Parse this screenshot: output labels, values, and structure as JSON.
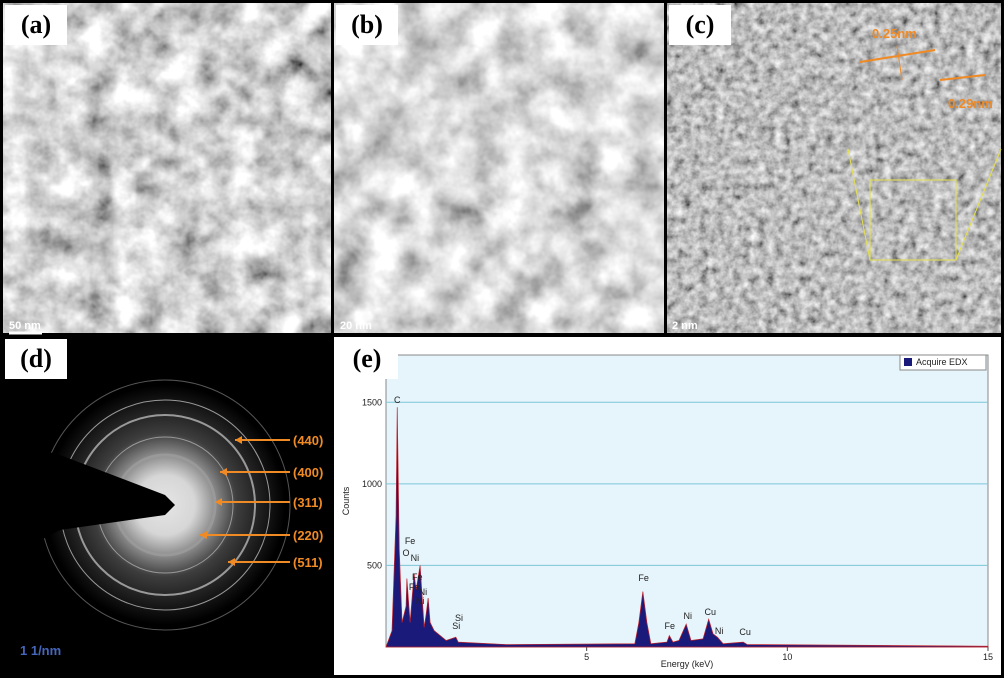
{
  "panels": [
    {
      "label": "(a)",
      "scale_bar": "50 nm"
    },
    {
      "label": "(b)",
      "scale_bar": "20 nm"
    },
    {
      "label": "(c)",
      "scale_bar": "2 nm"
    },
    {
      "label": "(d)",
      "scale_bar": "1 1/nm"
    },
    {
      "label": "(e)"
    }
  ],
  "inset": {
    "spacing_1": "0.25nm",
    "spacing_2": "0.29nm"
  },
  "diffraction": {
    "rings": [
      "(440)",
      "(400)",
      "(311)",
      "(220)",
      "(511)"
    ]
  },
  "chart_data": {
    "type": "area",
    "xlabel": "Energy (keV)",
    "ylabel": "Counts",
    "xlim": [
      0,
      15
    ],
    "xticks": [
      5,
      10,
      15
    ],
    "ylim": [
      0,
      1790
    ],
    "yticks": [
      500,
      1000,
      1500
    ],
    "grid": true,
    "legend": "upper right",
    "series": [
      {
        "name": "Acquire EDX",
        "color": "#1a1a7a",
        "x": [
          0,
          0.15,
          0.25,
          0.28,
          0.33,
          0.4,
          0.5,
          0.52,
          0.6,
          0.7,
          0.75,
          0.85,
          0.95,
          1.0,
          1.05,
          1.1,
          1.2,
          1.5,
          1.74,
          1.8,
          3,
          6.2,
          6.3,
          6.4,
          6.5,
          6.6,
          7.0,
          7.06,
          7.15,
          7.3,
          7.48,
          7.6,
          7.9,
          8.04,
          8.15,
          8.26,
          8.4,
          8.9,
          9.0,
          15
        ],
        "values": [
          0,
          100,
          800,
          1470,
          600,
          150,
          250,
          420,
          150,
          450,
          350,
          500,
          120,
          200,
          300,
          150,
          100,
          40,
          60,
          30,
          15,
          20,
          150,
          340,
          150,
          20,
          30,
          70,
          30,
          40,
          140,
          40,
          50,
          170,
          80,
          60,
          20,
          30,
          15,
          5
        ]
      }
    ],
    "annotations": [
      {
        "text": "C",
        "x": 0.28,
        "y": 1497
      },
      {
        "text": "Fe",
        "x": 0.6,
        "y": 632
      },
      {
        "text": "O",
        "x": 0.5,
        "y": 558
      },
      {
        "text": "Ni",
        "x": 0.72,
        "y": 528
      },
      {
        "text": "Fe",
        "x": 0.78,
        "y": 411
      },
      {
        "text": "Fe",
        "x": 0.7,
        "y": 350
      },
      {
        "text": "Ni",
        "x": 0.92,
        "y": 319
      },
      {
        "text": "Ni",
        "x": 0.85,
        "y": 264
      },
      {
        "text": "Si",
        "x": 1.82,
        "y": 160
      },
      {
        "text": "Si",
        "x": 1.75,
        "y": 110
      },
      {
        "text": "Fe",
        "x": 6.42,
        "y": 405
      },
      {
        "text": "Fe",
        "x": 7.07,
        "y": 110
      },
      {
        "text": "Ni",
        "x": 7.52,
        "y": 172
      },
      {
        "text": "Cu",
        "x": 8.08,
        "y": 196
      },
      {
        "text": "Ni",
        "x": 8.3,
        "y": 80
      },
      {
        "text": "Cu",
        "x": 8.95,
        "y": 74
      }
    ]
  }
}
